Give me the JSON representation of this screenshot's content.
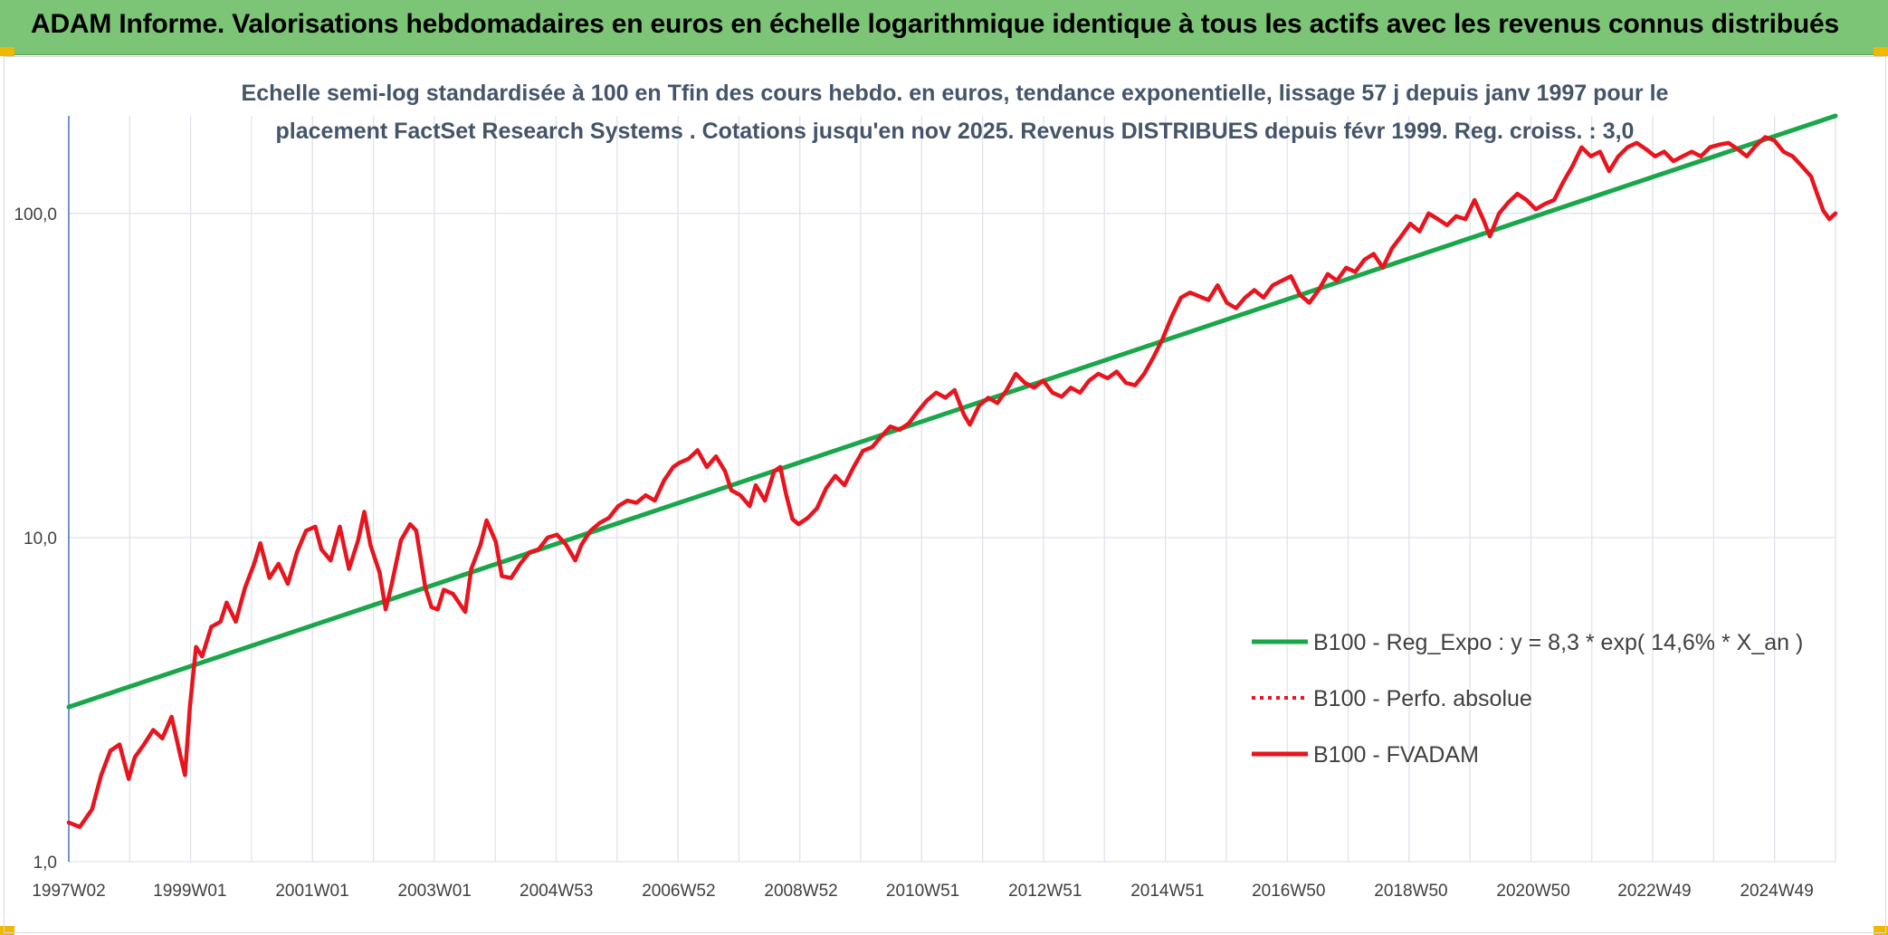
{
  "header": {
    "title": "ADAM Informe. Valorisations hebdomadaires en euros en échelle logarithmique identique à tous les actifs avec les revenus connus distribués"
  },
  "chart_data": {
    "type": "line",
    "title_lines": [
      "Echelle semi-log standardisée à 100 en Tfin des cours hebdo. en euros, tendance exponentielle, lissage 57 j depuis janv 1997 pour le",
      "placement FactSet Research Systems . Cotations jusqu'en nov 2025. Revenus DISTRIBUES depuis févr 1999. Reg. croiss. : 3,0"
    ],
    "y_scale": "log",
    "ylim": [
      1,
      200
    ],
    "y_ticks": [
      {
        "value": 1,
        "label": "1,0"
      },
      {
        "value": 10,
        "label": "10,0"
      },
      {
        "value": 100,
        "label": "100,0"
      }
    ],
    "xlim": [
      1997.02,
      2025.9
    ],
    "x_ticks": [
      {
        "x": 1997.02,
        "label": "1997W02"
      },
      {
        "x": 1999.0,
        "label": "1999W01"
      },
      {
        "x": 2001.0,
        "label": "2001W01"
      },
      {
        "x": 2003.0,
        "label": "2003W01"
      },
      {
        "x": 2004.99,
        "label": "2004W53"
      },
      {
        "x": 2006.99,
        "label": "2006W52"
      },
      {
        "x": 2008.99,
        "label": "2008W52"
      },
      {
        "x": 2010.98,
        "label": "2010W51"
      },
      {
        "x": 2012.98,
        "label": "2012W51"
      },
      {
        "x": 2014.98,
        "label": "2014W51"
      },
      {
        "x": 2016.96,
        "label": "2016W50"
      },
      {
        "x": 2018.96,
        "label": "2018W50"
      },
      {
        "x": 2020.96,
        "label": "2020W50"
      },
      {
        "x": 2022.94,
        "label": "2022W49"
      },
      {
        "x": 2024.94,
        "label": "2024W49"
      }
    ],
    "grid": "vertical and horizontal",
    "legend_position": "right-middle",
    "series": [
      {
        "name": "B100 - Reg_Expo : y = 8,3 * exp( 14,6% *  X_an )",
        "color": "#1aa64a",
        "style": "solid-thick",
        "points": [
          [
            1997.02,
            3.0
          ],
          [
            2025.9,
            200
          ]
        ]
      },
      {
        "name": "B100 - Perfo. absolue",
        "color": "#e8141e",
        "style": "dotted",
        "points": []
      },
      {
        "name": "B100 - FVADAM",
        "color": "#e8141e",
        "style": "solid-thick",
        "points": [
          [
            1997.02,
            1.32
          ],
          [
            1997.2,
            1.28
          ],
          [
            1997.4,
            1.45
          ],
          [
            1997.55,
            1.85
          ],
          [
            1997.7,
            2.2
          ],
          [
            1997.85,
            2.3
          ],
          [
            1998.0,
            1.8
          ],
          [
            1998.1,
            2.1
          ],
          [
            1998.25,
            2.3
          ],
          [
            1998.4,
            2.55
          ],
          [
            1998.55,
            2.4
          ],
          [
            1998.7,
            2.8
          ],
          [
            1998.85,
            2.1
          ],
          [
            1998.92,
            1.85
          ],
          [
            1999.0,
            3.0
          ],
          [
            1999.1,
            4.6
          ],
          [
            1999.2,
            4.3
          ],
          [
            1999.35,
            5.3
          ],
          [
            1999.5,
            5.5
          ],
          [
            1999.6,
            6.3
          ],
          [
            1999.75,
            5.5
          ],
          [
            1999.9,
            7.0
          ],
          [
            2000.05,
            8.3
          ],
          [
            2000.15,
            9.6
          ],
          [
            2000.3,
            7.5
          ],
          [
            2000.45,
            8.3
          ],
          [
            2000.6,
            7.2
          ],
          [
            2000.75,
            9.0
          ],
          [
            2000.9,
            10.5
          ],
          [
            2001.05,
            10.8
          ],
          [
            2001.15,
            9.2
          ],
          [
            2001.3,
            8.5
          ],
          [
            2001.45,
            10.8
          ],
          [
            2001.6,
            8.0
          ],
          [
            2001.75,
            9.8
          ],
          [
            2001.85,
            12.0
          ],
          [
            2001.95,
            9.5
          ],
          [
            2002.1,
            7.8
          ],
          [
            2002.2,
            6.0
          ],
          [
            2002.3,
            7.2
          ],
          [
            2002.45,
            9.8
          ],
          [
            2002.6,
            11.0
          ],
          [
            2002.7,
            10.5
          ],
          [
            2002.85,
            7.0
          ],
          [
            2002.95,
            6.1
          ],
          [
            2003.05,
            6.0
          ],
          [
            2003.15,
            6.9
          ],
          [
            2003.3,
            6.7
          ],
          [
            2003.5,
            5.9
          ],
          [
            2003.6,
            8.0
          ],
          [
            2003.75,
            9.5
          ],
          [
            2003.85,
            11.3
          ],
          [
            2004.0,
            9.7
          ],
          [
            2004.1,
            7.6
          ],
          [
            2004.25,
            7.5
          ],
          [
            2004.4,
            8.3
          ],
          [
            2004.55,
            9.0
          ],
          [
            2004.7,
            9.2
          ],
          [
            2004.85,
            10.0
          ],
          [
            2005.0,
            10.2
          ],
          [
            2005.15,
            9.5
          ],
          [
            2005.3,
            8.5
          ],
          [
            2005.4,
            9.5
          ],
          [
            2005.55,
            10.5
          ],
          [
            2005.7,
            11.1
          ],
          [
            2005.85,
            11.5
          ],
          [
            2006.0,
            12.5
          ],
          [
            2006.15,
            13.0
          ],
          [
            2006.3,
            12.8
          ],
          [
            2006.45,
            13.5
          ],
          [
            2006.6,
            13.0
          ],
          [
            2006.75,
            15.0
          ],
          [
            2006.9,
            16.5
          ],
          [
            2007.0,
            17.0
          ],
          [
            2007.15,
            17.5
          ],
          [
            2007.3,
            18.6
          ],
          [
            2007.45,
            16.5
          ],
          [
            2007.6,
            17.8
          ],
          [
            2007.75,
            16.0
          ],
          [
            2007.85,
            14.0
          ],
          [
            2008.0,
            13.5
          ],
          [
            2008.15,
            12.5
          ],
          [
            2008.25,
            14.5
          ],
          [
            2008.4,
            13.0
          ],
          [
            2008.55,
            16.0
          ],
          [
            2008.65,
            16.5
          ],
          [
            2008.75,
            13.5
          ],
          [
            2008.85,
            11.4
          ],
          [
            2008.95,
            11.0
          ],
          [
            2009.1,
            11.5
          ],
          [
            2009.25,
            12.3
          ],
          [
            2009.4,
            14.2
          ],
          [
            2009.55,
            15.5
          ],
          [
            2009.7,
            14.5
          ],
          [
            2009.85,
            16.5
          ],
          [
            2010.0,
            18.5
          ],
          [
            2010.15,
            19.0
          ],
          [
            2010.3,
            20.5
          ],
          [
            2010.45,
            22.0
          ],
          [
            2010.6,
            21.5
          ],
          [
            2010.75,
            22.5
          ],
          [
            2010.9,
            24.5
          ],
          [
            2011.05,
            26.5
          ],
          [
            2011.2,
            28.0
          ],
          [
            2011.35,
            27.0
          ],
          [
            2011.5,
            28.5
          ],
          [
            2011.65,
            24.0
          ],
          [
            2011.75,
            22.3
          ],
          [
            2011.9,
            25.5
          ],
          [
            2012.05,
            27.0
          ],
          [
            2012.2,
            26.0
          ],
          [
            2012.35,
            28.5
          ],
          [
            2012.5,
            32.0
          ],
          [
            2012.65,
            30.0
          ],
          [
            2012.8,
            29.0
          ],
          [
            2012.95,
            30.5
          ],
          [
            2013.1,
            28.0
          ],
          [
            2013.25,
            27.2
          ],
          [
            2013.4,
            29.0
          ],
          [
            2013.55,
            28.0
          ],
          [
            2013.7,
            30.5
          ],
          [
            2013.85,
            32.0
          ],
          [
            2014.0,
            31.0
          ],
          [
            2014.15,
            32.5
          ],
          [
            2014.3,
            30.0
          ],
          [
            2014.45,
            29.5
          ],
          [
            2014.6,
            32.0
          ],
          [
            2014.75,
            36.0
          ],
          [
            2014.9,
            41.0
          ],
          [
            2015.05,
            48.0
          ],
          [
            2015.2,
            55.0
          ],
          [
            2015.35,
            57.0
          ],
          [
            2015.5,
            55.5
          ],
          [
            2015.65,
            54.0
          ],
          [
            2015.8,
            60.0
          ],
          [
            2015.95,
            53.0
          ],
          [
            2016.1,
            51.0
          ],
          [
            2016.25,
            55.0
          ],
          [
            2016.4,
            58.0
          ],
          [
            2016.55,
            55.0
          ],
          [
            2016.7,
            60.0
          ],
          [
            2016.85,
            62.0
          ],
          [
            2017.0,
            64.0
          ],
          [
            2017.15,
            56.0
          ],
          [
            2017.3,
            53.0
          ],
          [
            2017.45,
            58.0
          ],
          [
            2017.6,
            65.0
          ],
          [
            2017.75,
            62.0
          ],
          [
            2017.9,
            68.0
          ],
          [
            2018.05,
            66.0
          ],
          [
            2018.2,
            72.0
          ],
          [
            2018.35,
            75.0
          ],
          [
            2018.5,
            68.0
          ],
          [
            2018.65,
            78.0
          ],
          [
            2018.8,
            85.0
          ],
          [
            2018.95,
            93.0
          ],
          [
            2019.1,
            88.0
          ],
          [
            2019.25,
            100.0
          ],
          [
            2019.4,
            96.0
          ],
          [
            2019.55,
            92.0
          ],
          [
            2019.7,
            98.0
          ],
          [
            2019.85,
            96.0
          ],
          [
            2020.0,
            110.0
          ],
          [
            2020.15,
            95.0
          ],
          [
            2020.25,
            85.0
          ],
          [
            2020.4,
            100.0
          ],
          [
            2020.55,
            108.0
          ],
          [
            2020.7,
            115.0
          ],
          [
            2020.85,
            110.0
          ],
          [
            2021.0,
            103.0
          ],
          [
            2021.15,
            107.0
          ],
          [
            2021.3,
            110.0
          ],
          [
            2021.45,
            125.0
          ],
          [
            2021.6,
            140.0
          ],
          [
            2021.75,
            160.0
          ],
          [
            2021.9,
            150.0
          ],
          [
            2022.05,
            155.0
          ],
          [
            2022.2,
            135.0
          ],
          [
            2022.35,
            150.0
          ],
          [
            2022.5,
            160.0
          ],
          [
            2022.65,
            165.0
          ],
          [
            2022.8,
            158.0
          ],
          [
            2022.95,
            150.0
          ],
          [
            2023.1,
            155.0
          ],
          [
            2023.25,
            145.0
          ],
          [
            2023.4,
            150.0
          ],
          [
            2023.55,
            155.0
          ],
          [
            2023.7,
            150.0
          ],
          [
            2023.85,
            160.0
          ],
          [
            2024.0,
            163.0
          ],
          [
            2024.15,
            165.0
          ],
          [
            2024.3,
            158.0
          ],
          [
            2024.45,
            150.0
          ],
          [
            2024.6,
            162.0
          ],
          [
            2024.75,
            172.0
          ],
          [
            2024.9,
            168.0
          ],
          [
            2025.05,
            155.0
          ],
          [
            2025.2,
            150.0
          ],
          [
            2025.35,
            140.0
          ],
          [
            2025.5,
            130.0
          ],
          [
            2025.6,
            115.0
          ],
          [
            2025.7,
            102.0
          ],
          [
            2025.8,
            96.0
          ],
          [
            2025.9,
            100.0
          ]
        ]
      }
    ]
  }
}
